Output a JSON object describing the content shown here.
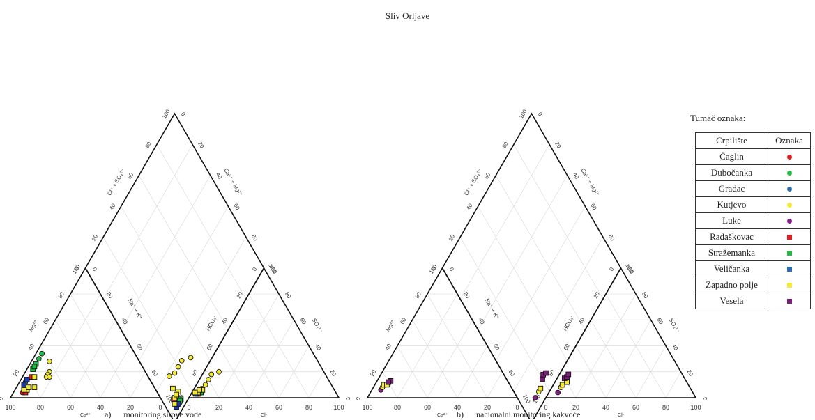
{
  "title": "Sliv Orljave",
  "legend": {
    "title": "Tumač oznaka:",
    "col_source": "Crpilište",
    "col_mark": "Oznaka",
    "items": [
      {
        "name": "Čaglin",
        "shape": "circle",
        "color": "#e02020"
      },
      {
        "name": "Dubočanka",
        "shape": "circle",
        "color": "#22bb44"
      },
      {
        "name": "Gradac",
        "shape": "circle",
        "color": "#2a6fb5"
      },
      {
        "name": "Kutjevo",
        "shape": "circle",
        "color": "#f3ea3a"
      },
      {
        "name": "Luke",
        "shape": "circle",
        "color": "#8a1d8a"
      },
      {
        "name": "Radaškovac",
        "shape": "square",
        "color": "#e02020"
      },
      {
        "name": "Stražemanka",
        "shape": "square",
        "color": "#22bb44"
      },
      {
        "name": "Veličanka",
        "shape": "square",
        "color": "#2a6fb5"
      },
      {
        "name": "Zapadno polje",
        "shape": "square",
        "color": "#f3ea3a"
      },
      {
        "name": "Vesela",
        "shape": "square",
        "color": "#7a1f7a"
      }
    ]
  },
  "chart_data": [
    {
      "type": "scatter",
      "subtype": "piper",
      "caption_letter": "a)",
      "caption_text": "monitoring sirove vode",
      "labels": {
        "cation_x": "Ca²⁺",
        "cation_left": "Mg²⁺",
        "cation_right": "Na⁺ + K⁺",
        "anion_x": "Cl-",
        "anion_left": "HCO₃⁻",
        "anion_right": "SO₄²⁻",
        "diamond_left": "Cl⁻ + SO₄²⁻",
        "diamond_right": "Ca²⁺ + Mg²⁺"
      },
      "ticks": [
        0,
        20,
        40,
        60,
        80,
        100
      ],
      "samples": [
        {
          "source": "Čaglin",
          "shape": "circle",
          "color": "#e02020",
          "cat": [
            90,
            4,
            6
          ],
          "an": [
            92,
            5,
            3
          ]
        },
        {
          "source": "Radaškovac",
          "shape": "square",
          "color": "#e02020",
          "cat": [
            88,
            4,
            8
          ],
          "an": [
            93,
            4,
            3
          ]
        },
        {
          "source": "Radaškovac",
          "shape": "square",
          "color": "#e02020",
          "cat": [
            78,
            16,
            6
          ],
          "an": [
            92,
            5,
            3
          ]
        },
        {
          "source": "Dubočanka",
          "shape": "circle",
          "color": "#22bb44",
          "cat": [
            62,
            34,
            4
          ],
          "an": [
            91,
            5,
            4
          ]
        },
        {
          "source": "Dubočanka",
          "shape": "circle",
          "color": "#22bb44",
          "cat": [
            66,
            30,
            4
          ],
          "an": [
            90,
            6,
            4
          ]
        },
        {
          "source": "Stražemanka",
          "shape": "square",
          "color": "#22bb44",
          "cat": [
            70,
            26,
            4
          ],
          "an": [
            89,
            6,
            5
          ]
        },
        {
          "source": "Stražemanka",
          "shape": "square",
          "color": "#22bb44",
          "cat": [
            74,
            22,
            4
          ],
          "an": [
            91,
            5,
            4
          ]
        },
        {
          "source": "Stražemanka",
          "shape": "square",
          "color": "#22bb44",
          "cat": [
            72,
            24,
            4
          ],
          "an": [
            90,
            6,
            4
          ]
        },
        {
          "source": "Gradac",
          "shape": "circle",
          "color": "#2a6fb5",
          "cat": [
            84,
            12,
            4
          ],
          "an": [
            93,
            4,
            3
          ]
        },
        {
          "source": "Veličanka",
          "shape": "square",
          "color": "#1a3aa8",
          "cat": [
            86,
            10,
            4
          ],
          "an": [
            94,
            3,
            3
          ]
        },
        {
          "source": "Veličanka",
          "shape": "square",
          "color": "#1a3aa8",
          "cat": [
            82,
            14,
            4
          ],
          "an": [
            92,
            4,
            4
          ]
        },
        {
          "source": "Kutjevo",
          "shape": "circle",
          "color": "#f3ea3a",
          "cat": [
            60,
            28,
            12
          ],
          "an": [
            70,
            10,
            20
          ]
        },
        {
          "source": "Kutjevo",
          "shape": "circle",
          "color": "#f3ea3a",
          "cat": [
            64,
            20,
            16
          ],
          "an": [
            76,
            6,
            18
          ]
        },
        {
          "source": "Kutjevo",
          "shape": "circle",
          "color": "#f3ea3a",
          "cat": [
            66,
            18,
            16
          ],
          "an": [
            80,
            6,
            14
          ]
        },
        {
          "source": "Kutjevo",
          "shape": "circle",
          "color": "#f3ea3a",
          "cat": [
            68,
            16,
            16
          ],
          "an": [
            84,
            6,
            10
          ]
        },
        {
          "source": "Kutjevo",
          "shape": "circle",
          "color": "#f3ea3a",
          "cat": [
            66,
            16,
            18
          ],
          "an": [
            88,
            5,
            7
          ]
        },
        {
          "source": "Zapadno polje",
          "shape": "square",
          "color": "#f3ea3a",
          "cat": [
            76,
            16,
            8
          ],
          "an": [
            88,
            6,
            6
          ]
        },
        {
          "source": "Zapadno polje",
          "shape": "square",
          "color": "#f3ea3a",
          "cat": [
            80,
            8,
            12
          ],
          "an": [
            90,
            4,
            6
          ]
        },
        {
          "source": "Zapadno polje",
          "shape": "square",
          "color": "#f3ea3a",
          "cat": [
            86,
            6,
            8
          ],
          "an": [
            92,
            4,
            4
          ]
        },
        {
          "source": "Zapadno polje",
          "shape": "square",
          "color": "#f3ea3a",
          "cat": [
            84,
            8,
            8
          ],
          "an": [
            90,
            4,
            6
          ]
        },
        {
          "source": "Zapadno polje",
          "shape": "square",
          "color": "#f3ea3a",
          "cat": [
            88,
            6,
            6
          ],
          "an": [
            94,
            2,
            4
          ]
        }
      ]
    },
    {
      "type": "scatter",
      "subtype": "piper",
      "caption_letter": "b)",
      "caption_text": "nacionalni monitoring kakvoće",
      "labels": {
        "cation_x": "Ca²⁺",
        "cation_left": "Mg²⁺",
        "cation_right": "Na⁺ + K⁺",
        "anion_x": "Cl-",
        "anion_left": "HCO₃⁻",
        "anion_right": "SO₄²⁻",
        "diamond_left": "Cl⁻ + SO₄²⁻",
        "diamond_right": "Ca²⁺ + Mg²⁺"
      },
      "ticks": [
        0,
        20,
        40,
        60,
        80,
        100
      ],
      "samples": [
        {
          "source": "Luke",
          "shape": "circle",
          "color": "#8a1d8a",
          "cat": [
            88,
            6,
            6
          ],
          "an": [
            90,
            6,
            4
          ]
        },
        {
          "source": "Kutjevo",
          "shape": "circle",
          "color": "#f3ea3a",
          "cat": [
            86,
            8,
            6
          ],
          "an": [
            86,
            6,
            8
          ]
        },
        {
          "source": "Zapadno polje",
          "shape": "square",
          "color": "#f3ea3a",
          "cat": [
            84,
            10,
            6
          ],
          "an": [
            84,
            6,
            10
          ]
        },
        {
          "source": "Zapadno polje",
          "shape": "square",
          "color": "#f3ea3a",
          "cat": [
            82,
            10,
            8
          ],
          "an": [
            80,
            8,
            12
          ]
        },
        {
          "source": "Vesela",
          "shape": "square",
          "color": "#7a1f7a",
          "cat": [
            80,
            12,
            8
          ],
          "an": [
            80,
            5,
            15
          ]
        },
        {
          "source": "Vesela",
          "shape": "square",
          "color": "#7a1f7a",
          "cat": [
            78,
            13,
            9
          ],
          "an": [
            78,
            6,
            16
          ]
        },
        {
          "source": "Vesela",
          "shape": "square",
          "color": "#7a1f7a",
          "cat": [
            80,
            12,
            8
          ],
          "an": [
            76,
            6,
            18
          ]
        }
      ]
    }
  ]
}
